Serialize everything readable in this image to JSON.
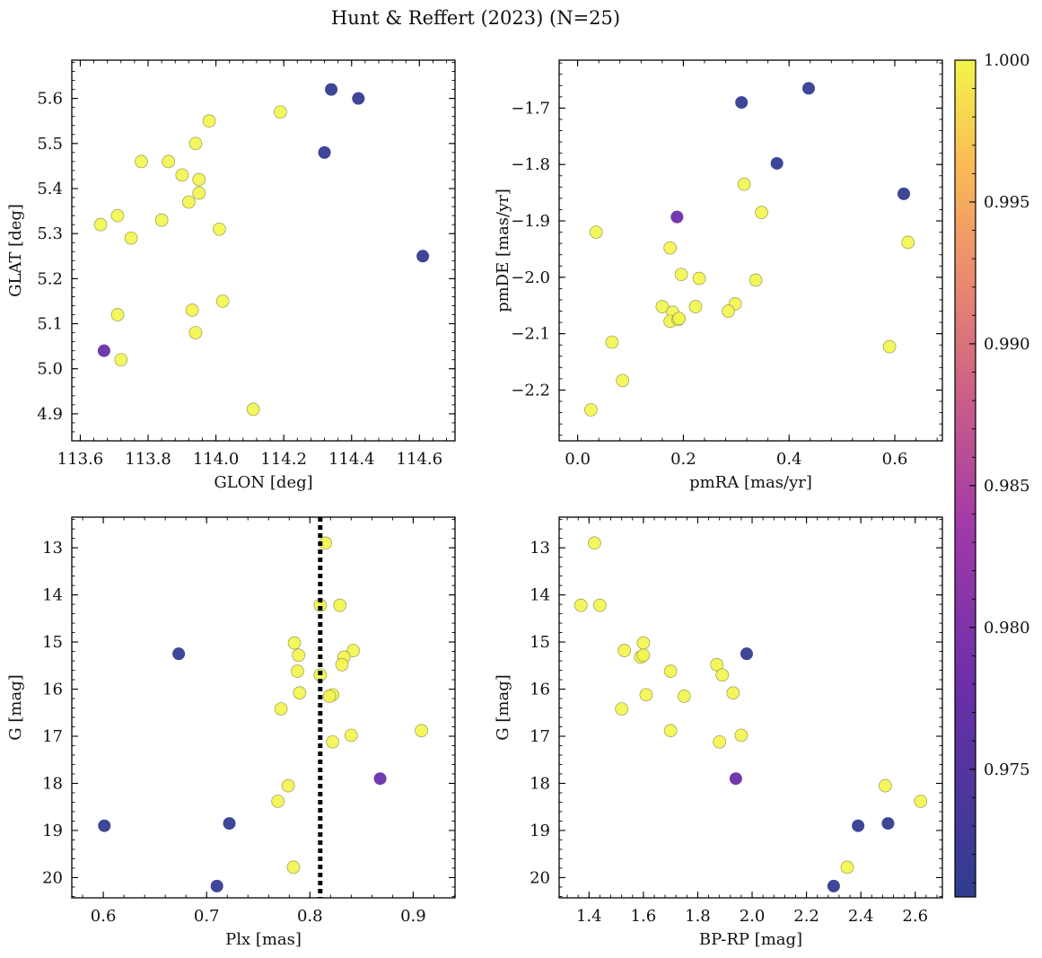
{
  "chart_data": {
    "type": "scatter",
    "title": "Hunt & Reffert (2023) (N=25)",
    "colorbar": {
      "label": "",
      "range": [
        0.9705,
        1.0
      ],
      "ticks": [
        1.0,
        0.995,
        0.99,
        0.985,
        0.98,
        0.975
      ],
      "tick_labels": [
        "1.000",
        "0.995",
        "0.990",
        "0.985",
        "0.980",
        "0.975"
      ],
      "colormap": "plasma"
    },
    "stars": {
      "glon": [
        113.66,
        113.71,
        113.75,
        113.78,
        113.84,
        113.86,
        113.9,
        113.92,
        113.94,
        113.95,
        113.95,
        113.98,
        114.01,
        114.19,
        113.93,
        113.71,
        114.02,
        113.94,
        113.72,
        114.11,
        113.67,
        114.34,
        114.42,
        114.32,
        114.61
      ],
      "glat": [
        5.32,
        5.34,
        5.29,
        5.46,
        5.33,
        5.46,
        5.43,
        5.37,
        5.5,
        5.42,
        5.39,
        5.55,
        5.31,
        5.57,
        5.13,
        5.12,
        5.15,
        5.08,
        5.02,
        4.91,
        5.04,
        5.62,
        5.6,
        5.48,
        5.25
      ],
      "pmra": [
        0.035,
        0.315,
        0.348,
        0.625,
        0.175,
        0.196,
        0.23,
        0.16,
        0.18,
        0.175,
        0.19,
        0.223,
        0.298,
        0.285,
        0.337,
        0.065,
        0.085,
        0.025,
        0.59,
        0.192,
        0.188,
        0.31,
        0.437,
        0.377,
        0.617
      ],
      "pmde": [
        -1.92,
        -1.835,
        -1.885,
        -1.938,
        -1.948,
        -1.995,
        -2.002,
        -2.052,
        -2.062,
        -2.078,
        -2.075,
        -2.052,
        -2.047,
        -2.06,
        -2.005,
        -2.115,
        -2.183,
        -2.235,
        -2.123,
        -2.073,
        -1.893,
        -1.69,
        -1.665,
        -1.798,
        -1.852
      ],
      "plx": [
        0.815,
        0.829,
        0.81,
        0.785,
        0.842,
        0.833,
        0.789,
        0.831,
        0.788,
        0.81,
        0.822,
        0.79,
        0.819,
        0.772,
        0.84,
        0.908,
        0.822,
        0.779,
        0.769,
        0.784,
        0.868,
        0.673,
        0.601,
        0.722,
        0.71
      ],
      "bp_rp": [
        1.42,
        1.37,
        1.44,
        1.6,
        1.53,
        1.59,
        1.6,
        1.87,
        1.7,
        1.89,
        1.61,
        1.93,
        1.75,
        1.52,
        1.96,
        1.7,
        1.88,
        2.49,
        2.62,
        2.35,
        1.94,
        1.98,
        2.39,
        2.5,
        2.3
      ],
      "gmag": [
        12.9,
        14.22,
        14.22,
        15.02,
        15.18,
        15.32,
        15.28,
        15.48,
        15.62,
        15.7,
        16.12,
        16.08,
        16.15,
        16.42,
        16.98,
        16.88,
        17.12,
        18.05,
        18.38,
        19.78,
        17.9,
        15.25,
        18.9,
        18.85,
        20.18
      ],
      "prob": [
        1,
        1,
        1,
        1,
        1,
        1,
        1,
        1,
        1,
        1,
        1,
        1,
        1,
        1,
        1,
        1,
        1,
        1,
        1,
        1,
        0.9778,
        0.971,
        0.971,
        0.971,
        0.971
      ]
    },
    "panels": [
      {
        "id": "glon-glat",
        "x": "glon",
        "y": "glat",
        "xlabel": "GLON [deg]",
        "ylabel": "GLAT [deg]",
        "xlim": [
          113.575,
          114.705
        ],
        "ylim": [
          4.84,
          5.685
        ],
        "y_inverted": false,
        "xticks": [
          113.6,
          113.8,
          114.0,
          114.2,
          114.4,
          114.6
        ],
        "xtick_labels": [
          "113.6",
          "113.8",
          "114.0",
          "114.2",
          "114.4",
          "114.6"
        ],
        "yticks": [
          4.9,
          5.0,
          5.1,
          5.2,
          5.3,
          5.4,
          5.5,
          5.6
        ],
        "ytick_labels": [
          "4.9",
          "5.0",
          "5.1",
          "5.2",
          "5.3",
          "5.4",
          "5.5",
          "5.6"
        ],
        "xminor": 0.04,
        "yminor": 0.02
      },
      {
        "id": "pmra-pmde",
        "x": "pmra",
        "y": "pmde",
        "xlabel": "pmRA [mas/yr]",
        "ylabel": "pmDE [mas/yr]",
        "xlim": [
          -0.035,
          0.69
        ],
        "ylim": [
          -2.29,
          -1.615
        ],
        "y_inverted": false,
        "xticks": [
          0.0,
          0.2,
          0.4,
          0.6
        ],
        "xtick_labels": [
          "0.0",
          "0.2",
          "0.4",
          "0.6"
        ],
        "yticks": [
          -2.2,
          -2.1,
          -2.0,
          -1.9,
          -1.8,
          -1.7
        ],
        "ytick_labels": [
          "−2.2",
          "−2.1",
          "−2.0",
          "−1.9",
          "−1.8",
          "−1.7"
        ],
        "xminor": 0.04,
        "yminor": 0.02
      },
      {
        "id": "plx-g",
        "x": "plx",
        "y": "gmag",
        "xlabel": "Plx [mas]",
        "ylabel": "G [mag]",
        "xlim": [
          0.5695,
          0.9405
        ],
        "ylim": [
          12.35,
          20.43
        ],
        "y_inverted": true,
        "xticks": [
          0.6,
          0.7,
          0.8,
          0.9
        ],
        "xtick_labels": [
          "0.6",
          "0.7",
          "0.8",
          "0.9"
        ],
        "yticks": [
          13,
          14,
          15,
          16,
          17,
          18,
          19,
          20
        ],
        "ytick_labels": [
          "13",
          "14",
          "15",
          "16",
          "17",
          "18",
          "19",
          "20"
        ],
        "xminor": 0.02,
        "yminor": 0.2,
        "vline": {
          "x": 0.81,
          "style": "dotted"
        }
      },
      {
        "id": "bprp-g",
        "x": "bp_rp",
        "y": "gmag",
        "xlabel": "BP-RP [mag]",
        "ylabel": "G [mag]",
        "xlim": [
          1.29,
          2.7
        ],
        "ylim": [
          12.35,
          20.43
        ],
        "y_inverted": true,
        "xticks": [
          1.4,
          1.6,
          1.8,
          2.0,
          2.2,
          2.4,
          2.6
        ],
        "xtick_labels": [
          "1.4",
          "1.6",
          "1.8",
          "2.0",
          "2.2",
          "2.4",
          "2.6"
        ],
        "yticks": [
          13,
          14,
          15,
          16,
          17,
          18,
          19,
          20
        ],
        "ytick_labels": [
          "13",
          "14",
          "15",
          "16",
          "17",
          "18",
          "19",
          "20"
        ],
        "xminor": 0.04,
        "yminor": 0.2
      }
    ]
  }
}
